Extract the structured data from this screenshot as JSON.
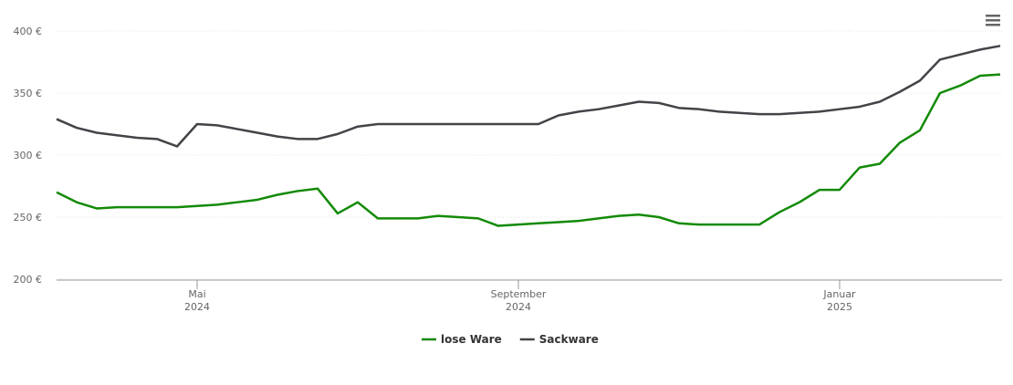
{
  "chart_data": {
    "type": "line",
    "categories": [
      null,
      null,
      null,
      null,
      null,
      null,
      null,
      "Mai 2024",
      null,
      null,
      null,
      null,
      null,
      null,
      null,
      null,
      null,
      null,
      null,
      null,
      null,
      null,
      null,
      "September 2024",
      null,
      null,
      null,
      null,
      null,
      null,
      null,
      null,
      null,
      null,
      null,
      null,
      null,
      null,
      null,
      "Januar 2025",
      null,
      null,
      null,
      null,
      null,
      null,
      null,
      null
    ],
    "series": [
      {
        "name": "lose Ware",
        "color": "#138a07",
        "values": [
          270,
          262,
          257,
          258,
          258,
          258,
          258,
          259,
          260,
          262,
          264,
          268,
          271,
          273,
          253,
          262,
          249,
          249,
          249,
          251,
          250,
          249,
          243,
          244,
          245,
          246,
          247,
          249,
          251,
          252,
          250,
          245,
          244,
          244,
          244,
          244,
          254,
          262,
          272,
          272,
          290,
          293,
          310,
          320,
          350,
          356,
          364,
          365
        ]
      },
      {
        "name": "Sackware",
        "color": "#434348",
        "values": [
          329,
          322,
          318,
          316,
          314,
          313,
          307,
          325,
          324,
          321,
          318,
          315,
          313,
          313,
          317,
          323,
          325,
          325,
          325,
          325,
          325,
          325,
          325,
          325,
          325,
          332,
          335,
          337,
          340,
          343,
          342,
          338,
          337,
          335,
          334,
          333,
          333,
          334,
          335,
          337,
          339,
          343,
          351,
          360,
          377,
          381,
          385,
          388
        ]
      }
    ],
    "ylim": [
      200,
      400
    ],
    "yticks": [
      {
        "value": 200,
        "label": "200 €"
      },
      {
        "value": 250,
        "label": "250 €"
      },
      {
        "value": 300,
        "label": "300 €"
      },
      {
        "value": 350,
        "label": "350 €"
      },
      {
        "value": 400,
        "label": "400 €"
      }
    ],
    "grid": true,
    "legend": "bottom"
  }
}
